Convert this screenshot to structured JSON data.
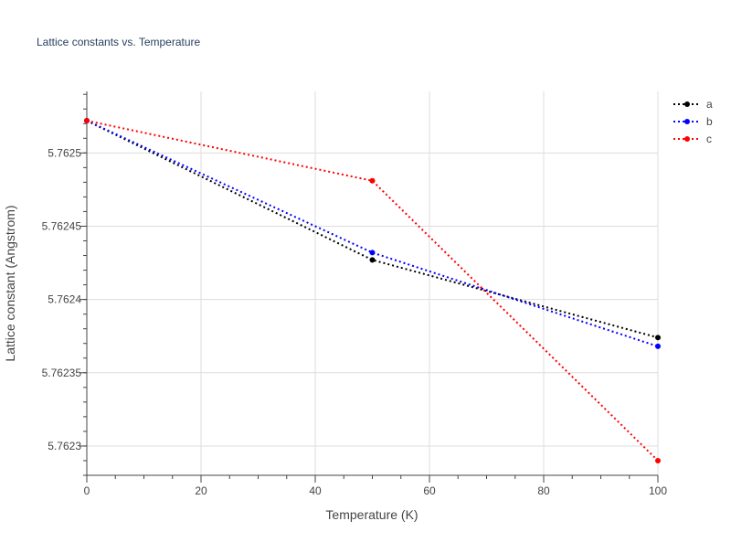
{
  "chart_data": {
    "type": "line",
    "title": "Lattice constants vs. Temperature",
    "xlabel": "Temperature (K)",
    "ylabel": "Lattice constant (Angstrom)",
    "x": [
      0,
      50,
      100
    ],
    "xlim": [
      0,
      100
    ],
    "ylim": [
      5.76228,
      5.762542
    ],
    "x_ticks": [
      0,
      20,
      40,
      60,
      80,
      100
    ],
    "x_tick_labels": [
      "0",
      "20",
      "40",
      "60",
      "80",
      "100"
    ],
    "y_ticks": [
      5.7623,
      5.76235,
      5.7624,
      5.76245,
      5.7625
    ],
    "y_tick_labels": [
      "5.7623",
      "5.76235",
      "5.7624",
      "5.76245",
      "5.7625"
    ],
    "grid": true,
    "line_style": "dotted",
    "markers": true,
    "legend_position": "top-right",
    "series": [
      {
        "name": "a",
        "color": "#000000",
        "values": [
          5.762522,
          5.762427,
          5.762374
        ]
      },
      {
        "name": "b",
        "color": "#0000ff",
        "values": [
          5.762522,
          5.762432,
          5.762368
        ]
      },
      {
        "name": "c",
        "color": "#ff0000",
        "values": [
          5.762522,
          5.762481,
          5.76229
        ]
      }
    ]
  }
}
